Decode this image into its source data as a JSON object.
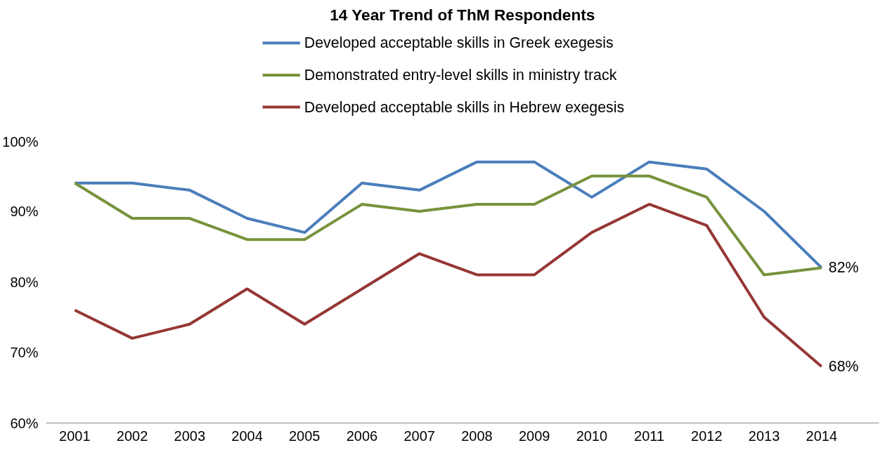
{
  "chart_data": {
    "type": "line",
    "title": "14 Year Trend of ThM Respondents",
    "categories": [
      "2001",
      "2002",
      "2003",
      "2004",
      "2005",
      "2006",
      "2007",
      "2008",
      "2009",
      "2010",
      "2011",
      "2012",
      "2013",
      "2014"
    ],
    "series": [
      {
        "name": "Developed acceptable skills in Greek exegesis",
        "color": "#4a7ebb",
        "values": [
          94,
          94,
          93,
          89,
          87,
          94,
          93,
          97,
          97,
          92,
          97,
          96,
          90,
          82
        ]
      },
      {
        "name": "Demonstrated entry-level skills in ministry track",
        "color": "#77933c",
        "values": [
          94,
          89,
          89,
          86,
          86,
          91,
          90,
          91,
          91,
          95,
          95,
          92,
          81,
          82
        ]
      },
      {
        "name": "Developed acceptable skills in Hebrew exegesis",
        "color": "#953735",
        "values": [
          76,
          72,
          74,
          79,
          74,
          79,
          84,
          81,
          81,
          87,
          91,
          88,
          75,
          68
        ]
      }
    ],
    "ylim": [
      60,
      100
    ],
    "yticks": [
      {
        "value": 60,
        "label": "60%"
      },
      {
        "value": 70,
        "label": "70%"
      },
      {
        "value": 80,
        "label": "80%"
      },
      {
        "value": 90,
        "label": "90%"
      },
      {
        "value": 100,
        "label": "100%"
      }
    ],
    "annotations": [
      {
        "text": "82%",
        "x": "2014",
        "y": 82
      },
      {
        "text": "68%",
        "x": "2014",
        "y": 68
      }
    ],
    "grid": false,
    "legend": "top",
    "marker": "none",
    "line_style": "solid"
  }
}
